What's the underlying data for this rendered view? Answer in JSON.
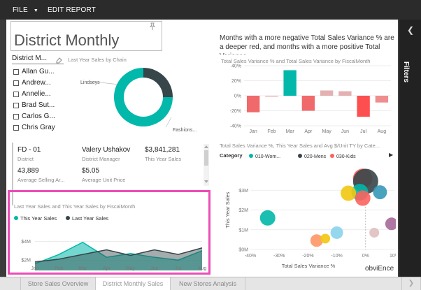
{
  "topbar": {
    "file_label": "FILE",
    "file_caret": "▼",
    "edit_report_label": "EDIT REPORT"
  },
  "filters_pane": {
    "label": "Filters",
    "toggle_icon": "chevron-left-icon"
  },
  "report_title": "District Monthly",
  "slicer": {
    "title": "District M...",
    "items": [
      "Allan Gu...",
      "Andrew...",
      "Annelie...",
      "Brad Sut...",
      "Carlos G...",
      "Chris Gray"
    ]
  },
  "donut": {
    "title": "Last Year Sales by Chain",
    "label_lindseys": "Lindseys",
    "label_fashions": "Fashions...",
    "colors": {
      "fashions": "#01B8AA",
      "lindseys": "#374649"
    }
  },
  "variance_chart": {
    "heading": "Months with a more negative Total Sales Variance % are a deeper red, and months with a more positive Total Variance",
    "title": "Total Sales Variance % and Total Sales Variance by FiscalMonth"
  },
  "card": {
    "district_value": "FD - 01",
    "district_label": "District",
    "manager_value": "Valery Ushakov",
    "manager_label": "District Manager",
    "sales_value": "$3,841,281",
    "sales_label": "This Year Sales",
    "avg_selling_value": "43,889",
    "avg_selling_label": "Average Selling Ar...",
    "avg_price_value": "$5.05",
    "avg_price_label": "Average Unit Price"
  },
  "area_chart": {
    "title": "Last Year Sales and This Year Sales by FiscalMonth",
    "legend": [
      {
        "name": "This Year Sales",
        "color": "#01B8AA"
      },
      {
        "name": "Last Year Sales",
        "color": "#374649"
      }
    ]
  },
  "scatter_chart": {
    "title": "Total Sales Variance %, This Year Sales and Avg $/Unit TY by Cate...",
    "category_label": "Category",
    "legend": [
      {
        "name": "010-Wom...",
        "color": "#01B8AA"
      },
      {
        "name": "020-Mens",
        "color": "#374649"
      },
      {
        "name": "030-Kids",
        "color": "#FD625E"
      }
    ],
    "more_icon": "play-right-icon"
  },
  "brand": "obviEnce",
  "tabs": [
    {
      "label": "Store Sales Overview",
      "active": false
    },
    {
      "label": "District Monthly Sales",
      "active": true
    },
    {
      "label": "New Stores Analysis",
      "active": false
    }
  ],
  "chart_data": [
    {
      "type": "bar",
      "title": "Total Sales Variance % and Total Sales Variance by FiscalMonth",
      "categories": [
        "Jan",
        "Feb",
        "Mar",
        "Apr",
        "May",
        "Jun",
        "Jul",
        "Aug"
      ],
      "values": [
        -22,
        -1,
        34,
        -20,
        7,
        6,
        -28,
        -9
      ],
      "colors": [
        "#F0696B",
        "#E8A2A2",
        "#01B8AA",
        "#F0696B",
        "#E3B1B1",
        "#E3B1B1",
        "#FD4F4F",
        "#EF8E8E"
      ],
      "yticks": [
        "40%",
        "20%",
        "0%",
        "-20%",
        "-40%"
      ],
      "ylim": [
        -40,
        40
      ]
    },
    {
      "type": "area",
      "title": "Last Year Sales and This Year Sales by FiscalMonth",
      "categories": [
        "Jan",
        "Feb",
        "Mar",
        "Apr",
        "May",
        "Jun",
        "Jul",
        "Aug"
      ],
      "series": [
        {
          "name": "This Year Sales",
          "values": [
            1.6,
            2.6,
            3.9,
            2.3,
            2.7,
            2.3,
            2.0,
            3.0
          ],
          "color": "#01B8AA"
        },
        {
          "name": "Last Year Sales",
          "values": [
            1.8,
            2.1,
            2.6,
            3.1,
            2.5,
            3.1,
            2.6,
            3.3
          ],
          "color": "#374649"
        }
      ],
      "yticks": [
        "$4M",
        "$2M"
      ],
      "ylim": [
        0,
        5
      ]
    },
    {
      "type": "scatter",
      "title": "Total Sales Variance %, This Year Sales and Avg $/Unit TY by Cate...",
      "xlabel": "Total Sales Variance %",
      "ylabel": "This Year Sales",
      "xticks": [
        "-40%",
        "-30%",
        "-20%",
        "-10%",
        "0%",
        "10%"
      ],
      "yticks": [
        "$3M",
        "$2M",
        "$1M",
        "$0M"
      ],
      "xlim": [
        -40,
        10
      ],
      "ylim": [
        0,
        4
      ],
      "points": [
        {
          "x": -1,
          "y": 3.6,
          "size": 14,
          "color": "#FD625E"
        },
        {
          "x": 0,
          "y": 3.45,
          "size": 18,
          "color": "#374649"
        },
        {
          "x": -2,
          "y": 2.9,
          "size": 12,
          "color": "#01B8AA"
        },
        {
          "x": -6,
          "y": 2.85,
          "size": 11,
          "color": "#F2C80F"
        },
        {
          "x": 5,
          "y": 2.9,
          "size": 10,
          "color": "#3599B8"
        },
        {
          "x": -1,
          "y": 2.6,
          "size": 11,
          "color": "#FD625E"
        },
        {
          "x": -34,
          "y": 1.6,
          "size": 11,
          "color": "#01B8AA"
        },
        {
          "x": -10,
          "y": 0.85,
          "size": 9,
          "color": "#8AD4EB"
        },
        {
          "x": -17,
          "y": 0.45,
          "size": 9,
          "color": "#FE9666"
        },
        {
          "x": -14,
          "y": 0.55,
          "size": 7,
          "color": "#F2C80F"
        },
        {
          "x": 9,
          "y": 1.3,
          "size": 9,
          "color": "#A66999"
        },
        {
          "x": 3,
          "y": 0.85,
          "size": 7,
          "color": "#DFBFBF"
        }
      ]
    },
    {
      "type": "pie",
      "title": "Last Year Sales by Chain",
      "categories": [
        "Fashions...",
        "Lindseys"
      ],
      "values": [
        75,
        25
      ]
    }
  ]
}
